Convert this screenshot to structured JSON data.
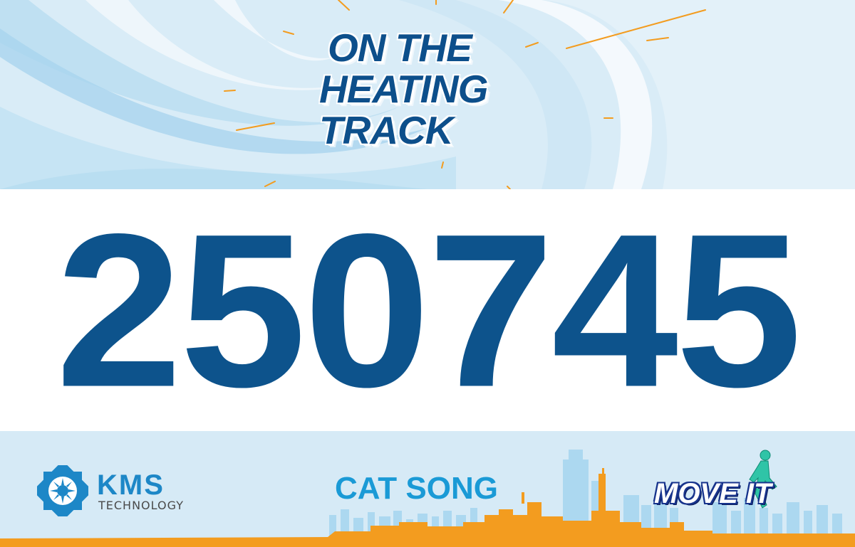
{
  "event": {
    "title_lines": [
      "ON THE",
      "HEATING",
      "TRACK"
    ]
  },
  "bib": {
    "number": "250745"
  },
  "runner": {
    "name": "CAT SONG"
  },
  "sponsors": {
    "left": {
      "brand": "KMS",
      "subtitle": "TECHNOLOGY",
      "icon": "kms-sun-emblem-icon"
    },
    "right": {
      "brand": "MOVE IT",
      "icon": "runner-figure-icon"
    }
  },
  "colors": {
    "title": "#0d4f8b",
    "number": "#0d538c",
    "name": "#1a9ad6",
    "accent_orange": "#f39c1f",
    "header_bg": "#d9ecf7"
  }
}
